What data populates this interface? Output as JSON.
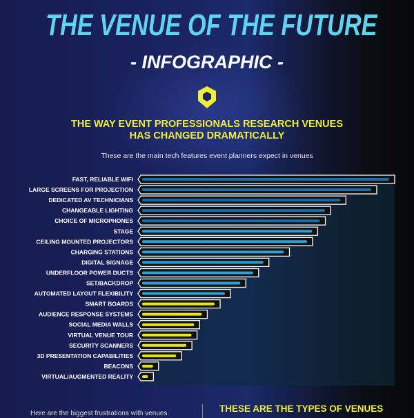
{
  "header": {
    "title": "THE VENUE OF THE FUTURE",
    "subtitle": "- INFOGRAPHIC -"
  },
  "section": {
    "heading_line1": "THE WAY EVENT PROFESSIONALS RESEARCH VENUES",
    "heading_line2": "HAS CHANGED DRAMATICALLY",
    "description": "These are the main tech features event planners expect in venues"
  },
  "footer": {
    "left_text": "Here are the biggest frustrations with venues",
    "right_heading": "THESE ARE THE TYPES OF VENUES"
  },
  "colors": {
    "title": "#5fd3f0",
    "heading": "#f0ee3a",
    "bar_blue": "#2a9fd8",
    "bar_yellow": "#e8e41a"
  },
  "logo_icon": "hexagon-pin-icon",
  "chart_data": {
    "type": "bar",
    "orientation": "horizontal",
    "scale": "relative (no axis printed)",
    "categories": [
      "FAST, RELIABLE WIFI",
      "LARGE SCREENS FOR PROJECTION",
      "DEDICATED AV TECHNICIANS",
      "CHANGEABLE LIGHTING",
      "CHOICE OF MICROPHONES",
      "STAGE",
      "CEILING MOUNTED PROJECTORS",
      "CHARGING STATIONS",
      "DIGITAL SIGNAGE",
      "UNDERFLOOR POWER DUCTS",
      "SET/BACKDROP",
      "AUTOMATED LAYOUT FLEXIBILITY",
      "SMART BOARDS",
      "AUDIENCE RESPONSE SYSTEMS",
      "SOCIAL MEDIA WALLS",
      "VIRTUAL VENUE TOUR",
      "SECURITY SCANNERS",
      "3D PRESENTATION CAPABILITIES",
      "BEACONS",
      "VIRTUAL/AUGMENTED REALITY"
    ],
    "values": [
      100,
      93,
      81,
      75,
      73,
      70,
      68,
      59,
      51,
      47,
      42,
      36,
      32,
      27,
      24,
      23,
      21,
      17,
      8,
      6
    ],
    "bar_colors": [
      "dark-blue",
      "dark-blue",
      "dark-blue",
      "dark-blue",
      "dark-blue",
      "blue",
      "blue",
      "blue",
      "blue",
      "blue",
      "blue",
      "blue",
      "yellow",
      "yellow",
      "yellow",
      "yellow",
      "yellow",
      "yellow",
      "yellow",
      "yellow"
    ],
    "xlim": [
      0,
      100
    ],
    "grid": false,
    "legend": "none"
  }
}
